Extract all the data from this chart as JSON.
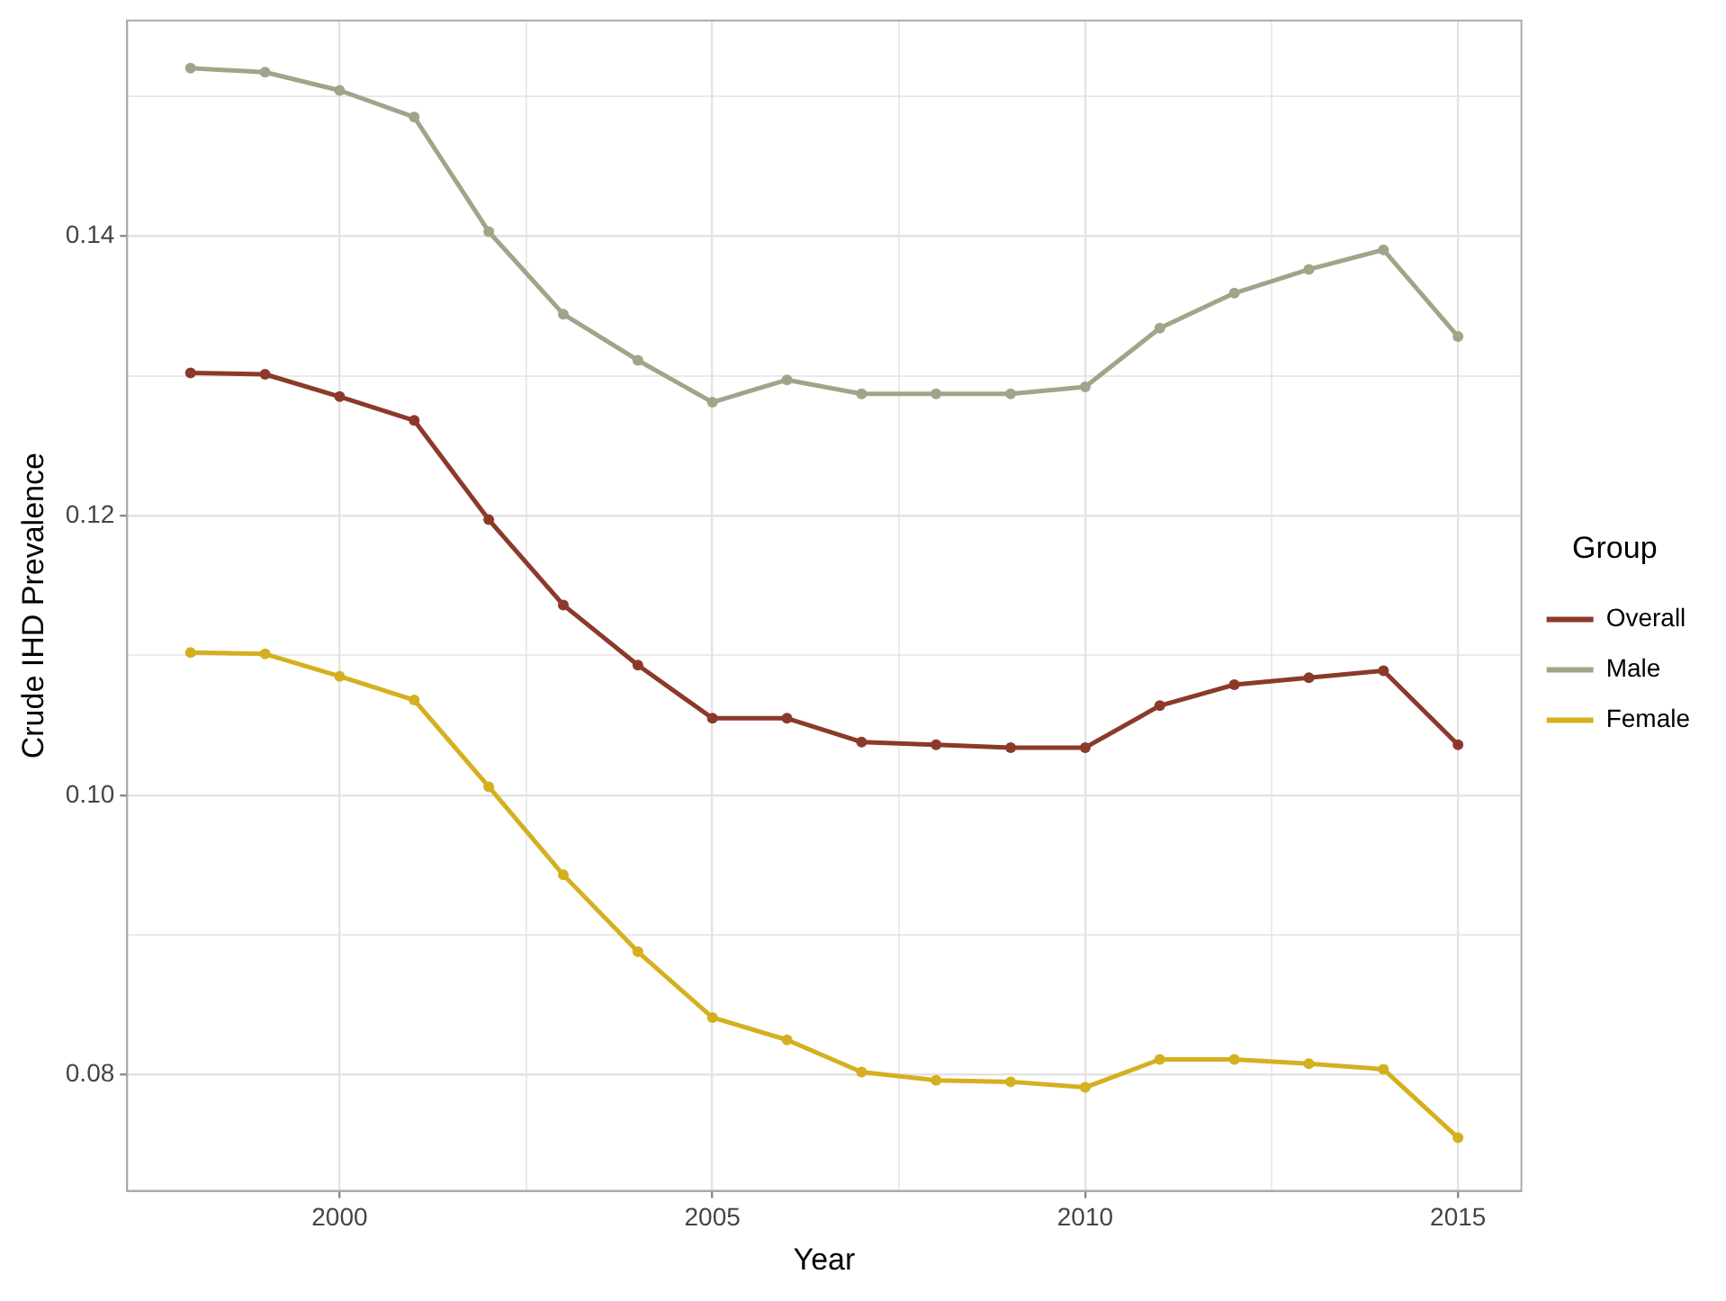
{
  "chart_data": {
    "type": "line",
    "xlabel": "Year",
    "ylabel": "Crude IHD Prevalence",
    "legend_title": "Group",
    "legend": "right",
    "grid": true,
    "marker": "circle",
    "line_style": "solid",
    "x": [
      1998,
      1999,
      2000,
      2001,
      2002,
      2003,
      2004,
      2005,
      2006,
      2007,
      2008,
      2009,
      2010,
      2011,
      2012,
      2013,
      2014,
      2015
    ],
    "xlim": [
      1997.15,
      2015.85
    ],
    "xticks": [
      2000,
      {
        "value": 2002.5,
        "label": null
      },
      2005,
      {
        "value": 2007.5,
        "label": null
      },
      2010,
      {
        "value": 2012.5,
        "label": null
      },
      2015
    ],
    "ylim": [
      0.0717,
      0.1554
    ],
    "yticks": [
      {
        "value": 0.08,
        "label": "0.08"
      },
      {
        "value": 0.09,
        "label": null
      },
      {
        "value": 0.1,
        "label": "0.10"
      },
      {
        "value": 0.11,
        "label": null
      },
      {
        "value": 0.12,
        "label": "0.12"
      },
      {
        "value": 0.13,
        "label": null
      },
      {
        "value": 0.14,
        "label": "0.14"
      },
      {
        "value": 0.15,
        "label": null
      }
    ],
    "series": [
      {
        "name": "Overall",
        "color": "#8b3a2a",
        "values": [
          0.1302,
          0.1301,
          0.1285,
          0.1268,
          0.1197,
          0.1136,
          0.1093,
          0.1055,
          0.1055,
          0.1038,
          0.1036,
          0.1034,
          0.1034,
          0.1064,
          0.1079,
          0.1084,
          0.1089,
          0.1036
        ]
      },
      {
        "name": "Male",
        "color": "#a0a58a",
        "values": [
          0.152,
          0.1517,
          0.1504,
          0.1485,
          0.1403,
          0.1344,
          0.1311,
          0.1281,
          0.1297,
          0.1287,
          0.1287,
          0.1287,
          0.1292,
          0.1334,
          0.1359,
          0.1376,
          0.139,
          0.1328
        ]
      },
      {
        "name": "Female",
        "color": "#d4b020",
        "values": [
          0.1102,
          0.1101,
          0.1085,
          0.1068,
          0.1006,
          0.0943,
          0.0888,
          0.0841,
          0.0825,
          0.0802,
          0.0796,
          0.0795,
          0.0791,
          0.0811,
          0.0811,
          0.0808,
          0.0804,
          0.0755
        ]
      }
    ]
  }
}
